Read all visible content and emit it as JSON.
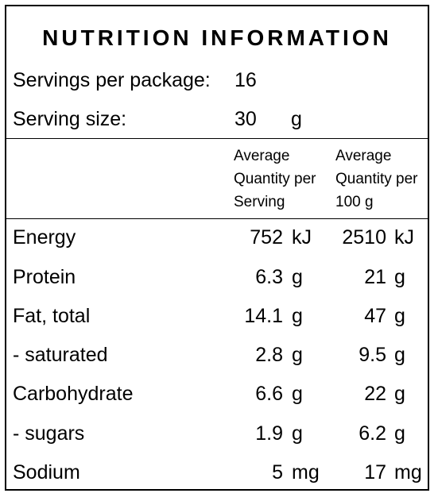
{
  "panel": {
    "title": "NUTRITION INFORMATION",
    "servings_label": "Servings per package:",
    "servings_value": "16",
    "serving_size_label": "Serving size:",
    "serving_size_value": "30",
    "serving_size_unit": "g"
  },
  "columns": {
    "per_serving": [
      "Average",
      "Quantity per",
      "Serving"
    ],
    "per_100g": [
      "Average",
      "Quantity per",
      "100 g"
    ]
  },
  "rows": [
    {
      "label": "Energy",
      "serving": "752",
      "serving_unit": "kJ",
      "per100": "2510",
      "per100_unit": "kJ"
    },
    {
      "label": "Protein",
      "serving": "6.3",
      "serving_unit": "g",
      "per100": "21",
      "per100_unit": "g"
    },
    {
      "label": "Fat, total",
      "serving": "14.1",
      "serving_unit": "g",
      "per100": "47",
      "per100_unit": "g"
    },
    {
      "label": "- saturated",
      "serving": "2.8",
      "serving_unit": "g",
      "per100": "9.5",
      "per100_unit": "g"
    },
    {
      "label": "Carbohydrate",
      "serving": "6.6",
      "serving_unit": "g",
      "per100": "22",
      "per100_unit": "g"
    },
    {
      "label": "- sugars",
      "serving": "1.9",
      "serving_unit": "g",
      "per100": "6.2",
      "per100_unit": "g"
    },
    {
      "label": "Sodium",
      "serving": "5",
      "serving_unit": "mg",
      "per100": "17",
      "per100_unit": "mg"
    }
  ]
}
